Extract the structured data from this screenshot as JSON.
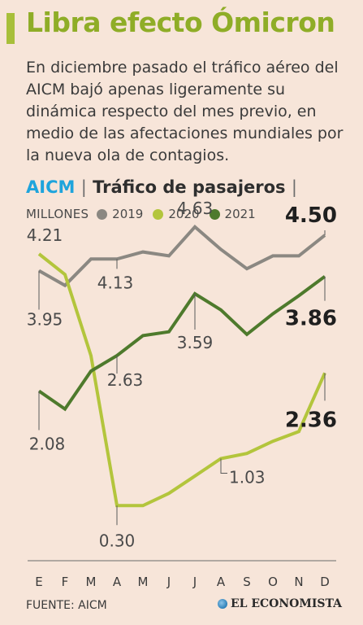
{
  "title": "Libra efecto Ómicron",
  "intro": "En diciembre pasado el tráfico aéreo del AICM bajó apenas ligeramente su dinámica respecto del mes previo, en medio de las afectaciones mundiales por la nueva ola de contagios.",
  "heading": {
    "source_label": "AICM",
    "separator": "|",
    "subtitle": "Tráfico de pasajeros",
    "trailing": "|"
  },
  "legend": {
    "unit": "MILLONES"
  },
  "colors": {
    "accent": "#a8bf3a",
    "title": "#8fad27",
    "aicm": "#1ea4dc",
    "s2019": "#8b8882",
    "s2020": "#b3c53c",
    "s2021": "#4e7a2c"
  },
  "chart_data": {
    "type": "line",
    "categories": [
      "E",
      "F",
      "M",
      "A",
      "M",
      "J",
      "J",
      "A",
      "S",
      "O",
      "N",
      "D"
    ],
    "series": [
      {
        "name": "2019",
        "color": "#8b8882",
        "values": [
          3.95,
          3.72,
          4.13,
          4.13,
          4.24,
          4.18,
          4.63,
          4.28,
          3.98,
          4.18,
          4.18,
          4.5
        ]
      },
      {
        "name": "2020",
        "color": "#b3c53c",
        "values": [
          4.21,
          3.89,
          2.63,
          0.3,
          0.3,
          0.49,
          0.76,
          1.03,
          1.11,
          1.3,
          1.45,
          2.36
        ]
      },
      {
        "name": "2021",
        "color": "#4e7a2c",
        "values": [
          2.08,
          1.8,
          2.39,
          2.63,
          2.94,
          3.0,
          3.59,
          3.34,
          2.96,
          3.28,
          3.56,
          3.86
        ]
      }
    ],
    "labels": [
      {
        "series": "2020",
        "index": 0,
        "text": "4.21"
      },
      {
        "series": "2019",
        "index": 0,
        "text": "3.95"
      },
      {
        "series": "2021",
        "index": 0,
        "text": "2.08"
      },
      {
        "series": "2019",
        "index": 3,
        "text": "4.13"
      },
      {
        "series": "2021",
        "index": 3,
        "text": "2.63"
      },
      {
        "series": "2020",
        "index": 3,
        "text": "0.30"
      },
      {
        "series": "2019",
        "index": 6,
        "text": "4.63"
      },
      {
        "series": "2021",
        "index": 6,
        "text": "3.59"
      },
      {
        "series": "2020",
        "index": 7,
        "text": "1.03"
      },
      {
        "series": "2019",
        "index": 11,
        "text": "4.50"
      },
      {
        "series": "2021",
        "index": 11,
        "text": "3.86"
      },
      {
        "series": "2020",
        "index": 11,
        "text": "2.36"
      }
    ],
    "ylim": [
      0,
      5
    ],
    "grid": false,
    "legend_position": "top-left"
  },
  "footer": {
    "source": "FUENTE: AICM",
    "brand": "EL ECONOMISTA"
  }
}
